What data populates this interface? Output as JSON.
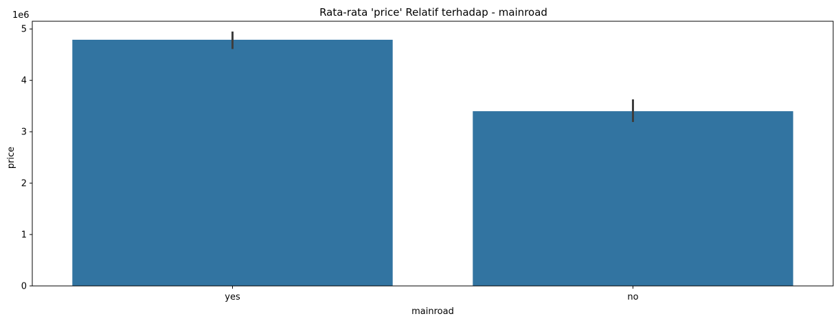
{
  "chart_data": {
    "type": "bar",
    "title": "Rata-rata 'price' Relatif terhadap - mainroad",
    "xlabel": "mainroad",
    "ylabel": "price",
    "y_offset_label": "1e6",
    "y_scale": 1000000,
    "categories": [
      "yes",
      "no"
    ],
    "values": [
      4790000,
      3400000
    ],
    "error_low": [
      4610000,
      3190000
    ],
    "error_high": [
      4950000,
      3630000
    ],
    "ylim": [
      0,
      5150000
    ],
    "yticks": [
      0,
      1000000,
      2000000,
      3000000,
      4000000,
      5000000
    ],
    "ytick_labels": [
      "0",
      "1",
      "2",
      "3",
      "4",
      "5"
    ],
    "grid": false,
    "bar_color": "#3274a1",
    "errorbar_color": "#3d3d3d"
  }
}
